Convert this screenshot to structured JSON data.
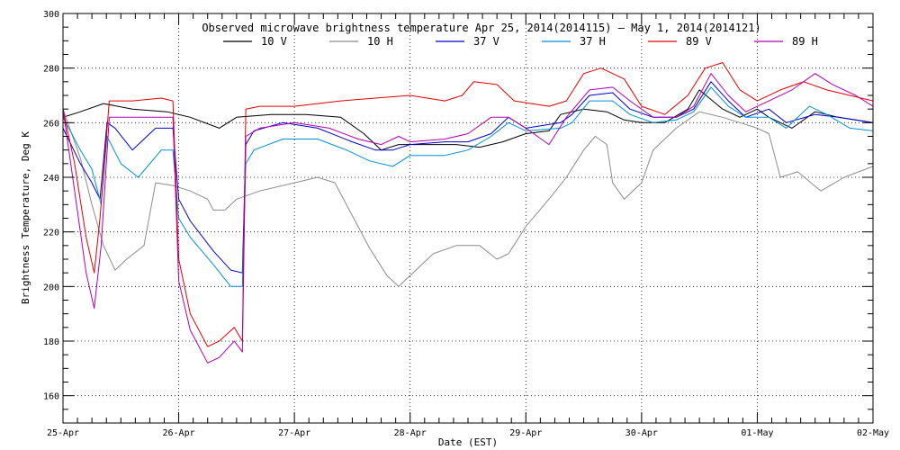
{
  "chart_data": {
    "type": "line",
    "title": "Observed microwave brightness temperature Apr 25, 2014(2014115) – May  1, 2014(2014121)",
    "xlabel": "Date (EST)",
    "ylabel": "Brightness Temperature, Deg K",
    "ylim": [
      150,
      300
    ],
    "xlim": [
      0,
      7
    ],
    "yticks": [
      160,
      180,
      200,
      220,
      240,
      260,
      280,
      300
    ],
    "xticks": [
      {
        "x": 0,
        "label": "25-Apr"
      },
      {
        "x": 1,
        "label": "26-Apr"
      },
      {
        "x": 2,
        "label": "27-Apr"
      },
      {
        "x": 3,
        "label": "28-Apr"
      },
      {
        "x": 4,
        "label": "29-Apr"
      },
      {
        "x": 5,
        "label": "30-Apr"
      },
      {
        "x": 6,
        "label": "01-May"
      },
      {
        "x": 7,
        "label": "02-May"
      }
    ],
    "grid": true,
    "legend_position": "top",
    "series": [
      {
        "name": "10 V",
        "color": "#000000",
        "points": [
          [
            0,
            262
          ],
          [
            0.15,
            264
          ],
          [
            0.35,
            267
          ],
          [
            0.6,
            265
          ],
          [
            0.9,
            264
          ],
          [
            1.1,
            262
          ],
          [
            1.35,
            258
          ],
          [
            1.5,
            262
          ],
          [
            1.8,
            263
          ],
          [
            2.1,
            263
          ],
          [
            2.4,
            262
          ],
          [
            2.6,
            256
          ],
          [
            2.75,
            250
          ],
          [
            2.9,
            252
          ],
          [
            3.1,
            252
          ],
          [
            3.4,
            252
          ],
          [
            3.6,
            251
          ],
          [
            3.8,
            253
          ],
          [
            4.0,
            256
          ],
          [
            4.2,
            257
          ],
          [
            4.3,
            263
          ],
          [
            4.5,
            265
          ],
          [
            4.7,
            264
          ],
          [
            4.85,
            261
          ],
          [
            5.0,
            260
          ],
          [
            5.2,
            260
          ],
          [
            5.4,
            265
          ],
          [
            5.5,
            272
          ],
          [
            5.7,
            265
          ],
          [
            5.85,
            262
          ],
          [
            6.0,
            265
          ],
          [
            6.1,
            262
          ],
          [
            6.3,
            258
          ],
          [
            6.5,
            264
          ],
          [
            6.7,
            262
          ],
          [
            6.85,
            261
          ],
          [
            7.0,
            260
          ]
        ]
      },
      {
        "name": "10 H",
        "color": "#8c8c8c",
        "points": [
          [
            0,
            265
          ],
          [
            0.15,
            247
          ],
          [
            0.25,
            230
          ],
          [
            0.35,
            215
          ],
          [
            0.45,
            206
          ],
          [
            0.55,
            210
          ],
          [
            0.7,
            215
          ],
          [
            0.8,
            238
          ],
          [
            0.95,
            237
          ],
          [
            1.1,
            235
          ],
          [
            1.25,
            232
          ],
          [
            1.3,
            228
          ],
          [
            1.4,
            228
          ],
          [
            1.5,
            232
          ],
          [
            1.7,
            235
          ],
          [
            2.0,
            238
          ],
          [
            2.2,
            240
          ],
          [
            2.35,
            238
          ],
          [
            2.5,
            226
          ],
          [
            2.65,
            214
          ],
          [
            2.8,
            204
          ],
          [
            2.9,
            200
          ],
          [
            3.0,
            204
          ],
          [
            3.2,
            212
          ],
          [
            3.4,
            215
          ],
          [
            3.6,
            215
          ],
          [
            3.75,
            210
          ],
          [
            3.85,
            212
          ],
          [
            4.0,
            222
          ],
          [
            4.2,
            232
          ],
          [
            4.35,
            240
          ],
          [
            4.5,
            250
          ],
          [
            4.6,
            255
          ],
          [
            4.7,
            252
          ],
          [
            4.75,
            238
          ],
          [
            4.85,
            232
          ],
          [
            5.0,
            238
          ],
          [
            5.1,
            250
          ],
          [
            5.3,
            258
          ],
          [
            5.5,
            264
          ],
          [
            5.7,
            262
          ],
          [
            5.85,
            260
          ],
          [
            6.0,
            258
          ],
          [
            6.1,
            256
          ],
          [
            6.2,
            240
          ],
          [
            6.35,
            242
          ],
          [
            6.55,
            235
          ],
          [
            6.75,
            240
          ],
          [
            7.0,
            244
          ]
        ]
      },
      {
        "name": "37 V",
        "color": "#0000cc",
        "points": [
          [
            0,
            258
          ],
          [
            0.15,
            245
          ],
          [
            0.25,
            238
          ],
          [
            0.32,
            232
          ],
          [
            0.38,
            260
          ],
          [
            0.45,
            258
          ],
          [
            0.6,
            250
          ],
          [
            0.8,
            258
          ],
          [
            0.95,
            258
          ],
          [
            1.0,
            232
          ],
          [
            1.1,
            224
          ],
          [
            1.3,
            213
          ],
          [
            1.45,
            206
          ],
          [
            1.55,
            205
          ],
          [
            1.58,
            252
          ],
          [
            1.65,
            257
          ],
          [
            1.9,
            260
          ],
          [
            2.2,
            258
          ],
          [
            2.5,
            253
          ],
          [
            2.7,
            250
          ],
          [
            2.85,
            250
          ],
          [
            3.0,
            252
          ],
          [
            3.3,
            253
          ],
          [
            3.5,
            253
          ],
          [
            3.7,
            256
          ],
          [
            3.85,
            262
          ],
          [
            4.0,
            258
          ],
          [
            4.3,
            260
          ],
          [
            4.4,
            263
          ],
          [
            4.55,
            270
          ],
          [
            4.75,
            271
          ],
          [
            4.9,
            265
          ],
          [
            5.1,
            262
          ],
          [
            5.3,
            262
          ],
          [
            5.45,
            265
          ],
          [
            5.6,
            275
          ],
          [
            5.75,
            268
          ],
          [
            5.9,
            262
          ],
          [
            6.1,
            265
          ],
          [
            6.25,
            260
          ],
          [
            6.5,
            263
          ],
          [
            6.7,
            262
          ],
          [
            6.85,
            261
          ],
          [
            7.0,
            260
          ]
        ]
      },
      {
        "name": "37 H",
        "color": "#0090d8",
        "points": [
          [
            0,
            262
          ],
          [
            0.15,
            250
          ],
          [
            0.25,
            243
          ],
          [
            0.33,
            230
          ],
          [
            0.38,
            255
          ],
          [
            0.5,
            245
          ],
          [
            0.65,
            240
          ],
          [
            0.85,
            250
          ],
          [
            0.95,
            250
          ],
          [
            1.0,
            225
          ],
          [
            1.1,
            218
          ],
          [
            1.3,
            208
          ],
          [
            1.45,
            200
          ],
          [
            1.55,
            200
          ],
          [
            1.58,
            245
          ],
          [
            1.65,
            250
          ],
          [
            1.9,
            254
          ],
          [
            2.2,
            254
          ],
          [
            2.45,
            250
          ],
          [
            2.65,
            246
          ],
          [
            2.85,
            244
          ],
          [
            3.0,
            248
          ],
          [
            3.3,
            248
          ],
          [
            3.5,
            250
          ],
          [
            3.7,
            255
          ],
          [
            3.85,
            260
          ],
          [
            4.0,
            257
          ],
          [
            4.3,
            258
          ],
          [
            4.4,
            260
          ],
          [
            4.55,
            268
          ],
          [
            4.75,
            268
          ],
          [
            4.9,
            263
          ],
          [
            5.1,
            260
          ],
          [
            5.3,
            261
          ],
          [
            5.45,
            264
          ],
          [
            5.6,
            273
          ],
          [
            5.75,
            266
          ],
          [
            5.9,
            262
          ],
          [
            6.1,
            262
          ],
          [
            6.25,
            258
          ],
          [
            6.45,
            266
          ],
          [
            6.6,
            263
          ],
          [
            6.8,
            258
          ],
          [
            7.0,
            257
          ]
        ]
      },
      {
        "name": "89 V",
        "color": "#e00000",
        "points": [
          [
            0,
            265
          ],
          [
            0.1,
            245
          ],
          [
            0.2,
            218
          ],
          [
            0.27,
            205
          ],
          [
            0.32,
            225
          ],
          [
            0.4,
            268
          ],
          [
            0.6,
            268
          ],
          [
            0.85,
            269
          ],
          [
            0.95,
            268
          ],
          [
            1.0,
            210
          ],
          [
            1.1,
            190
          ],
          [
            1.25,
            178
          ],
          [
            1.35,
            180
          ],
          [
            1.48,
            185
          ],
          [
            1.55,
            180
          ],
          [
            1.58,
            265
          ],
          [
            1.7,
            266
          ],
          [
            2.0,
            266
          ],
          [
            2.4,
            268
          ],
          [
            2.7,
            269
          ],
          [
            3.0,
            270
          ],
          [
            3.3,
            268
          ],
          [
            3.45,
            270
          ],
          [
            3.55,
            275
          ],
          [
            3.75,
            274
          ],
          [
            3.9,
            268
          ],
          [
            4.2,
            266
          ],
          [
            4.35,
            268
          ],
          [
            4.5,
            278
          ],
          [
            4.65,
            280
          ],
          [
            4.85,
            276
          ],
          [
            5.0,
            266
          ],
          [
            5.2,
            263
          ],
          [
            5.4,
            270
          ],
          [
            5.55,
            280
          ],
          [
            5.7,
            282
          ],
          [
            5.85,
            272
          ],
          [
            6.0,
            268
          ],
          [
            6.2,
            272
          ],
          [
            6.4,
            275
          ],
          [
            6.6,
            272
          ],
          [
            6.8,
            270
          ],
          [
            7.0,
            268
          ]
        ]
      },
      {
        "name": "89 H",
        "color": "#b000b0",
        "points": [
          [
            0,
            265
          ],
          [
            0.1,
            235
          ],
          [
            0.2,
            205
          ],
          [
            0.27,
            192
          ],
          [
            0.33,
            215
          ],
          [
            0.4,
            262
          ],
          [
            0.6,
            262
          ],
          [
            0.85,
            262
          ],
          [
            0.95,
            262
          ],
          [
            1.0,
            202
          ],
          [
            1.1,
            184
          ],
          [
            1.25,
            172
          ],
          [
            1.35,
            174
          ],
          [
            1.48,
            180
          ],
          [
            1.55,
            176
          ],
          [
            1.58,
            255
          ],
          [
            1.7,
            258
          ],
          [
            2.0,
            260
          ],
          [
            2.3,
            258
          ],
          [
            2.55,
            254
          ],
          [
            2.75,
            252
          ],
          [
            2.9,
            255
          ],
          [
            3.0,
            253
          ],
          [
            3.3,
            254
          ],
          [
            3.5,
            256
          ],
          [
            3.7,
            262
          ],
          [
            3.85,
            262
          ],
          [
            4.0,
            258
          ],
          [
            4.2,
            252
          ],
          [
            4.35,
            262
          ],
          [
            4.55,
            272
          ],
          [
            4.75,
            273
          ],
          [
            4.9,
            268
          ],
          [
            5.1,
            262
          ],
          [
            5.3,
            262
          ],
          [
            5.45,
            266
          ],
          [
            5.6,
            278
          ],
          [
            5.75,
            270
          ],
          [
            5.9,
            264
          ],
          [
            6.1,
            268
          ],
          [
            6.3,
            272
          ],
          [
            6.5,
            278
          ],
          [
            6.65,
            274
          ],
          [
            6.85,
            270
          ],
          [
            7.0,
            266
          ]
        ]
      }
    ]
  }
}
